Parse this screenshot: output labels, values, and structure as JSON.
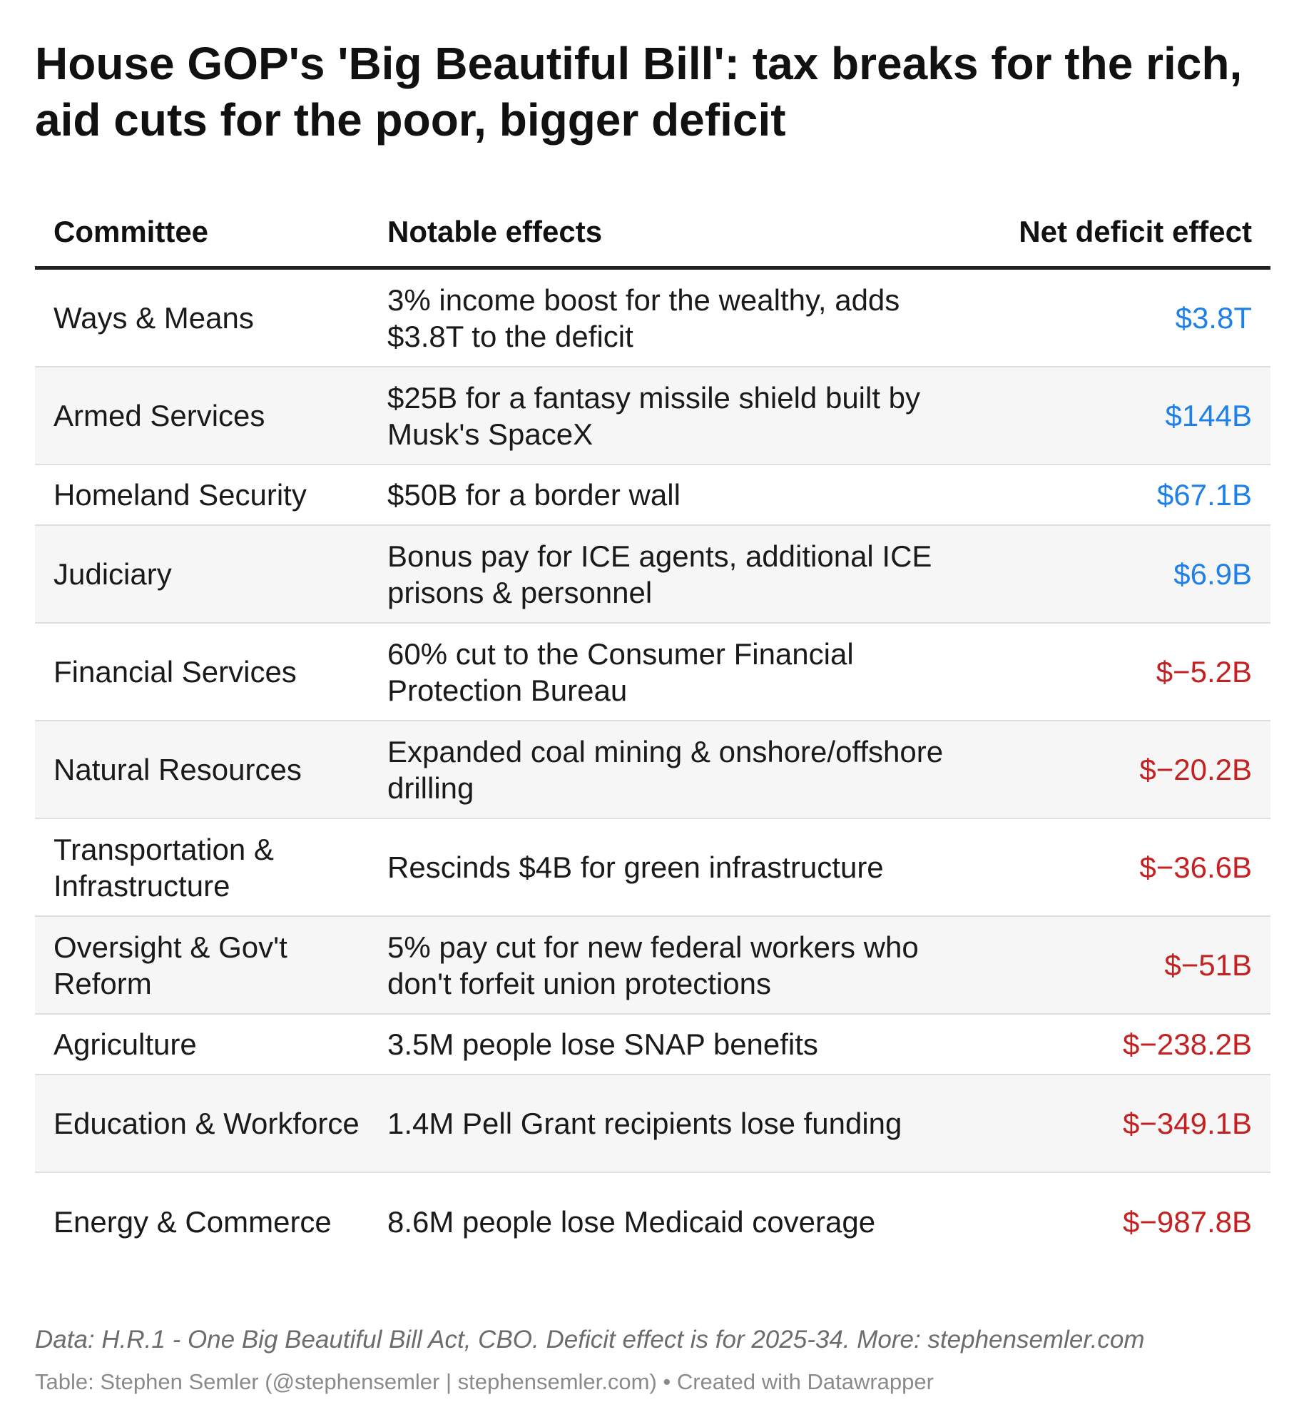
{
  "title": "House GOP's 'Big Beautiful Bill': tax breaks for the rich, aid cuts for the poor, bigger deficit",
  "chart_data": {
    "type": "table",
    "columns": [
      "Committee",
      "Notable effects",
      "Net deficit effect"
    ],
    "rows": [
      {
        "committee": "Ways & Means",
        "effect": "3% income boost for the wealthy, adds $3.8T to the deficit",
        "deficit": "$3.8T",
        "value_billions": 3800
      },
      {
        "committee": "Armed Services",
        "effect": "$25B for a fantasy missile shield built by Musk's SpaceX",
        "deficit": "$144B",
        "value_billions": 144
      },
      {
        "committee": "Homeland Security",
        "effect": "$50B for a border wall",
        "deficit": "$67.1B",
        "value_billions": 67.1
      },
      {
        "committee": "Judiciary",
        "effect": "Bonus pay for ICE agents, additional ICE prisons & personnel",
        "deficit": "$6.9B",
        "value_billions": 6.9
      },
      {
        "committee": "Financial Services",
        "effect": "60% cut to the Consumer Financial Protection Bureau",
        "deficit": "$−5.2B",
        "value_billions": -5.2
      },
      {
        "committee": "Natural Resources",
        "effect": "Expanded coal mining & onshore/offshore drilling",
        "deficit": "$−20.2B",
        "value_billions": -20.2
      },
      {
        "committee": "Transportation & Infrastructure",
        "effect": "Rescinds $4B for green infrastructure",
        "deficit": "$−36.6B",
        "value_billions": -36.6
      },
      {
        "committee": "Oversight & Gov't Reform",
        "effect": "5% pay cut for new federal workers who don't forfeit union protections",
        "deficit": "$−51B",
        "value_billions": -51
      },
      {
        "committee": "Agriculture",
        "effect": "3.5M people lose SNAP benefits",
        "deficit": "$−238.2B",
        "value_billions": -238.2
      },
      {
        "committee": "Education & Workforce",
        "effect": "1.4M Pell Grant recipients lose funding",
        "deficit": "$−349.1B",
        "value_billions": -349.1
      },
      {
        "committee": "Energy & Commerce",
        "effect": "8.6M people lose Medicaid coverage",
        "deficit": "$−987.8B",
        "value_billions": -987.8
      }
    ]
  },
  "colors": {
    "positive": "#1f80e8",
    "negative": "#c42222"
  },
  "footer": {
    "note": "Data: H.R.1 - One Big Beautiful Bill Act, CBO. Deficit effect is for 2025-34. More: stephensemler.com",
    "credit": "Table: Stephen Semler (@stephensemler | stephensemler.com) • Created with Datawrapper"
  }
}
